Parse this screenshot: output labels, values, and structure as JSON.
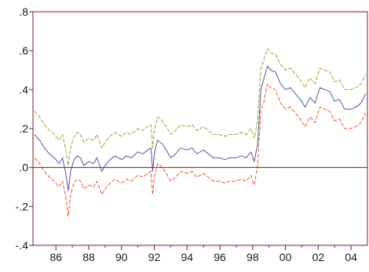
{
  "chart_data": {
    "type": "line",
    "title": "",
    "xlabel": "",
    "ylabel": "",
    "xlim": [
      1984.6,
      2005.0
    ],
    "ylim": [
      -0.4,
      0.8
    ],
    "grid": false,
    "zero_line": true,
    "colors": {
      "upper": "#8aaa33",
      "middle": "#5555aa",
      "lower": "#ee5533",
      "axis": "#7a1f1f",
      "zero_line": "#7a1f1f"
    },
    "x_ticks": [
      {
        "value": 1986,
        "label": "86"
      },
      {
        "value": 1988,
        "label": "88"
      },
      {
        "value": 1990,
        "label": "90"
      },
      {
        "value": 1992,
        "label": "92"
      },
      {
        "value": 1994,
        "label": "94"
      },
      {
        "value": 1996,
        "label": "96"
      },
      {
        "value": 1998,
        "label": "98"
      },
      {
        "value": 2000,
        "label": "00"
      },
      {
        "value": 2002,
        "label": "02"
      },
      {
        "value": 2004,
        "label": "04"
      }
    ],
    "y_ticks": [
      {
        "value": 0.8,
        "label": ".8"
      },
      {
        "value": 0.6,
        "label": ".6"
      },
      {
        "value": 0.4,
        "label": ".4"
      },
      {
        "value": 0.2,
        "label": ".2"
      },
      {
        "value": 0.0,
        "label": ".0"
      },
      {
        "value": -0.2,
        "label": "-.2"
      },
      {
        "value": -0.4,
        "label": "-.4"
      }
    ],
    "series": [
      {
        "key": "middle",
        "style": "solid",
        "points": [
          [
            1984.7,
            0.17
          ],
          [
            1985.0,
            0.14
          ],
          [
            1985.3,
            0.1
          ],
          [
            1985.6,
            0.07
          ],
          [
            1985.9,
            0.05
          ],
          [
            1986.2,
            0.02
          ],
          [
            1986.4,
            0.05
          ],
          [
            1986.6,
            -0.03
          ],
          [
            1986.75,
            -0.12
          ],
          [
            1986.9,
            -0.02
          ],
          [
            1987.1,
            0.04
          ],
          [
            1987.3,
            0.06
          ],
          [
            1987.5,
            0.05
          ],
          [
            1987.7,
            0.01
          ],
          [
            1988.0,
            0.03
          ],
          [
            1988.3,
            0.02
          ],
          [
            1988.5,
            0.05
          ],
          [
            1988.8,
            -0.02
          ],
          [
            1989.0,
            0.01
          ],
          [
            1989.3,
            0.04
          ],
          [
            1989.6,
            0.06
          ],
          [
            1990.0,
            0.04
          ],
          [
            1990.3,
            0.06
          ],
          [
            1990.6,
            0.05
          ],
          [
            1991.0,
            0.08
          ],
          [
            1991.3,
            0.07
          ],
          [
            1991.6,
            0.09
          ],
          [
            1991.8,
            0.1
          ],
          [
            1991.9,
            -0.02
          ],
          [
            1992.0,
            0.07
          ],
          [
            1992.2,
            0.14
          ],
          [
            1992.5,
            0.12
          ],
          [
            1992.8,
            0.08
          ],
          [
            1993.0,
            0.05
          ],
          [
            1993.3,
            0.07
          ],
          [
            1993.6,
            0.1
          ],
          [
            1994.0,
            0.09
          ],
          [
            1994.3,
            0.1
          ],
          [
            1994.6,
            0.07
          ],
          [
            1995.0,
            0.09
          ],
          [
            1995.3,
            0.07
          ],
          [
            1995.6,
            0.05
          ],
          [
            1996.0,
            0.05
          ],
          [
            1996.3,
            0.04
          ],
          [
            1996.6,
            0.05
          ],
          [
            1997.0,
            0.05
          ],
          [
            1997.3,
            0.06
          ],
          [
            1997.6,
            0.05
          ],
          [
            1997.9,
            0.08
          ],
          [
            1998.1,
            0.03
          ],
          [
            1998.3,
            0.12
          ],
          [
            1998.5,
            0.4
          ],
          [
            1998.7,
            0.46
          ],
          [
            1998.9,
            0.52
          ],
          [
            1999.1,
            0.5
          ],
          [
            1999.4,
            0.49
          ],
          [
            1999.7,
            0.43
          ],
          [
            2000.0,
            0.4
          ],
          [
            2000.3,
            0.41
          ],
          [
            2000.6,
            0.38
          ],
          [
            2000.9,
            0.35
          ],
          [
            2001.2,
            0.31
          ],
          [
            2001.5,
            0.36
          ],
          [
            2001.8,
            0.33
          ],
          [
            2002.1,
            0.41
          ],
          [
            2002.4,
            0.4
          ],
          [
            2002.7,
            0.39
          ],
          [
            2003.0,
            0.34
          ],
          [
            2003.3,
            0.35
          ],
          [
            2003.6,
            0.3
          ],
          [
            2004.0,
            0.3
          ],
          [
            2004.3,
            0.31
          ],
          [
            2004.6,
            0.33
          ],
          [
            2004.9,
            0.38
          ]
        ]
      },
      {
        "key": "upper",
        "style": "dashed",
        "points": [
          [
            1984.7,
            0.29
          ],
          [
            1985.0,
            0.26
          ],
          [
            1985.3,
            0.22
          ],
          [
            1985.6,
            0.19
          ],
          [
            1985.9,
            0.17
          ],
          [
            1986.2,
            0.14
          ],
          [
            1986.4,
            0.17
          ],
          [
            1986.6,
            0.09
          ],
          [
            1986.75,
            0.01
          ],
          [
            1986.9,
            0.1
          ],
          [
            1987.1,
            0.16
          ],
          [
            1987.3,
            0.18
          ],
          [
            1987.5,
            0.17
          ],
          [
            1987.7,
            0.13
          ],
          [
            1988.0,
            0.15
          ],
          [
            1988.3,
            0.14
          ],
          [
            1988.5,
            0.17
          ],
          [
            1988.8,
            0.1
          ],
          [
            1989.0,
            0.13
          ],
          [
            1989.3,
            0.16
          ],
          [
            1989.6,
            0.18
          ],
          [
            1990.0,
            0.16
          ],
          [
            1990.3,
            0.18
          ],
          [
            1990.6,
            0.17
          ],
          [
            1991.0,
            0.2
          ],
          [
            1991.3,
            0.19
          ],
          [
            1991.6,
            0.21
          ],
          [
            1991.8,
            0.22
          ],
          [
            1991.9,
            0.1
          ],
          [
            1992.0,
            0.19
          ],
          [
            1992.2,
            0.26
          ],
          [
            1992.5,
            0.24
          ],
          [
            1992.8,
            0.2
          ],
          [
            1993.0,
            0.17
          ],
          [
            1993.3,
            0.19
          ],
          [
            1993.6,
            0.22
          ],
          [
            1994.0,
            0.21
          ],
          [
            1994.3,
            0.22
          ],
          [
            1994.6,
            0.19
          ],
          [
            1995.0,
            0.21
          ],
          [
            1995.3,
            0.19
          ],
          [
            1995.6,
            0.17
          ],
          [
            1996.0,
            0.17
          ],
          [
            1996.3,
            0.16
          ],
          [
            1996.6,
            0.17
          ],
          [
            1997.0,
            0.17
          ],
          [
            1997.3,
            0.18
          ],
          [
            1997.6,
            0.17
          ],
          [
            1997.9,
            0.2
          ],
          [
            1998.1,
            0.15
          ],
          [
            1998.3,
            0.24
          ],
          [
            1998.5,
            0.51
          ],
          [
            1998.7,
            0.56
          ],
          [
            1998.9,
            0.61
          ],
          [
            1999.1,
            0.59
          ],
          [
            1999.4,
            0.58
          ],
          [
            1999.7,
            0.53
          ],
          [
            2000.0,
            0.5
          ],
          [
            2000.3,
            0.51
          ],
          [
            2000.6,
            0.48
          ],
          [
            2000.9,
            0.45
          ],
          [
            2001.2,
            0.41
          ],
          [
            2001.5,
            0.46
          ],
          [
            2001.8,
            0.43
          ],
          [
            2002.1,
            0.51
          ],
          [
            2002.4,
            0.5
          ],
          [
            2002.7,
            0.49
          ],
          [
            2003.0,
            0.44
          ],
          [
            2003.3,
            0.45
          ],
          [
            2003.6,
            0.4
          ],
          [
            2004.0,
            0.4
          ],
          [
            2004.3,
            0.41
          ],
          [
            2004.6,
            0.43
          ],
          [
            2004.9,
            0.48
          ]
        ]
      },
      {
        "key": "lower",
        "style": "dashed",
        "points": [
          [
            1984.7,
            0.05
          ],
          [
            1985.0,
            0.02
          ],
          [
            1985.3,
            -0.02
          ],
          [
            1985.6,
            -0.05
          ],
          [
            1985.9,
            -0.07
          ],
          [
            1986.2,
            -0.1
          ],
          [
            1986.4,
            -0.07
          ],
          [
            1986.6,
            -0.15
          ],
          [
            1986.75,
            -0.25
          ],
          [
            1986.9,
            -0.14
          ],
          [
            1987.1,
            -0.08
          ],
          [
            1987.3,
            -0.06
          ],
          [
            1987.5,
            -0.07
          ],
          [
            1987.7,
            -0.11
          ],
          [
            1988.0,
            -0.09
          ],
          [
            1988.3,
            -0.1
          ],
          [
            1988.5,
            -0.07
          ],
          [
            1988.8,
            -0.14
          ],
          [
            1989.0,
            -0.11
          ],
          [
            1989.3,
            -0.08
          ],
          [
            1989.6,
            -0.06
          ],
          [
            1990.0,
            -0.08
          ],
          [
            1990.3,
            -0.06
          ],
          [
            1990.6,
            -0.07
          ],
          [
            1991.0,
            -0.04
          ],
          [
            1991.3,
            -0.05
          ],
          [
            1991.6,
            -0.03
          ],
          [
            1991.8,
            -0.02
          ],
          [
            1991.9,
            -0.14
          ],
          [
            1992.0,
            -0.05
          ],
          [
            1992.2,
            0.02
          ],
          [
            1992.5,
            0.0
          ],
          [
            1992.8,
            -0.04
          ],
          [
            1993.0,
            -0.07
          ],
          [
            1993.3,
            -0.05
          ],
          [
            1993.6,
            -0.02
          ],
          [
            1994.0,
            -0.03
          ],
          [
            1994.3,
            -0.02
          ],
          [
            1994.6,
            -0.05
          ],
          [
            1995.0,
            -0.03
          ],
          [
            1995.3,
            -0.05
          ],
          [
            1995.6,
            -0.07
          ],
          [
            1996.0,
            -0.07
          ],
          [
            1996.3,
            -0.08
          ],
          [
            1996.6,
            -0.07
          ],
          [
            1997.0,
            -0.07
          ],
          [
            1997.3,
            -0.06
          ],
          [
            1997.6,
            -0.07
          ],
          [
            1997.9,
            -0.04
          ],
          [
            1998.1,
            -0.09
          ],
          [
            1998.3,
            0.01
          ],
          [
            1998.5,
            0.29
          ],
          [
            1998.7,
            0.34
          ],
          [
            1998.9,
            0.43
          ],
          [
            1999.1,
            0.41
          ],
          [
            1999.4,
            0.4
          ],
          [
            1999.7,
            0.33
          ],
          [
            2000.0,
            0.3
          ],
          [
            2000.3,
            0.31
          ],
          [
            2000.6,
            0.28
          ],
          [
            2000.9,
            0.25
          ],
          [
            2001.2,
            0.21
          ],
          [
            2001.5,
            0.26
          ],
          [
            2001.8,
            0.23
          ],
          [
            2002.1,
            0.31
          ],
          [
            2002.4,
            0.3
          ],
          [
            2002.7,
            0.29
          ],
          [
            2003.0,
            0.24
          ],
          [
            2003.3,
            0.25
          ],
          [
            2003.6,
            0.2
          ],
          [
            2004.0,
            0.2
          ],
          [
            2004.3,
            0.21
          ],
          [
            2004.6,
            0.23
          ],
          [
            2004.9,
            0.28
          ]
        ]
      }
    ]
  }
}
